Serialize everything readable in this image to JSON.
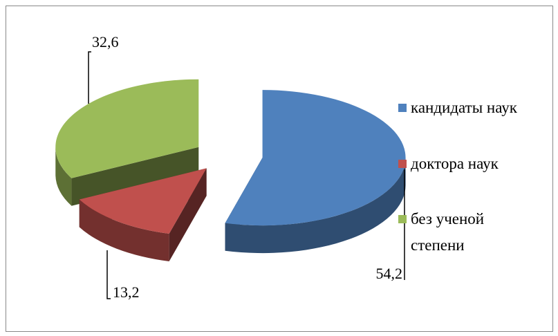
{
  "chart_data": {
    "type": "pie",
    "categories": [
      "кандидаты наук",
      "доктора наук",
      "без ученой степени"
    ],
    "values": [
      54.2,
      13.2,
      32.6
    ],
    "value_labels": [
      "54,2",
      "13,2",
      "32,6"
    ],
    "colors": [
      "#4f81bd",
      "#c0504d",
      "#9bbb59"
    ],
    "legend": "right"
  }
}
